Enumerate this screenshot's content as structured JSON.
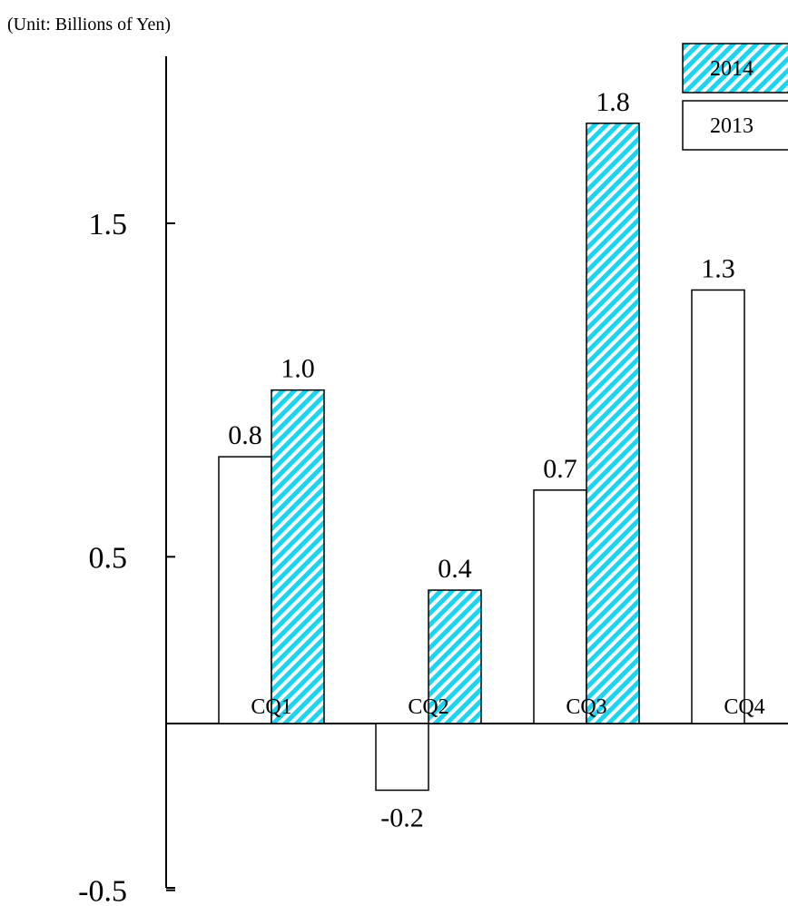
{
  "chart_data": {
    "type": "bar",
    "unit_label": "(Unit: Billions of Yen)",
    "categories": [
      "CQ1",
      "CQ2",
      "CQ3",
      "CQ4"
    ],
    "series": [
      {
        "name": "2013",
        "values": [
          0.8,
          -0.2,
          0.7,
          1.3
        ],
        "value_labels": [
          "0.8",
          "-0.2",
          "0.7",
          "1.3"
        ],
        "fill": "#ffffff",
        "pattern": "none"
      },
      {
        "name": "2014",
        "values": [
          1.0,
          0.4,
          1.8,
          null
        ],
        "value_labels": [
          "1.0",
          "0.4",
          "1.8",
          null
        ],
        "fill": "#1ad4f0",
        "pattern": "diagonal-hatch"
      }
    ],
    "y_ticks": [
      1.5,
      0.5,
      -0.5
    ],
    "y_tick_labels": [
      "1.5",
      "0.5",
      "-0.5"
    ],
    "ylim": [
      -0.5,
      2.0
    ],
    "legend": {
      "position": "top-right",
      "entries": [
        "2014",
        "2013"
      ]
    },
    "grid": false,
    "colors": {
      "hatch": "#1ad4f0",
      "stroke": "#000000",
      "background": "#ffffff"
    }
  }
}
